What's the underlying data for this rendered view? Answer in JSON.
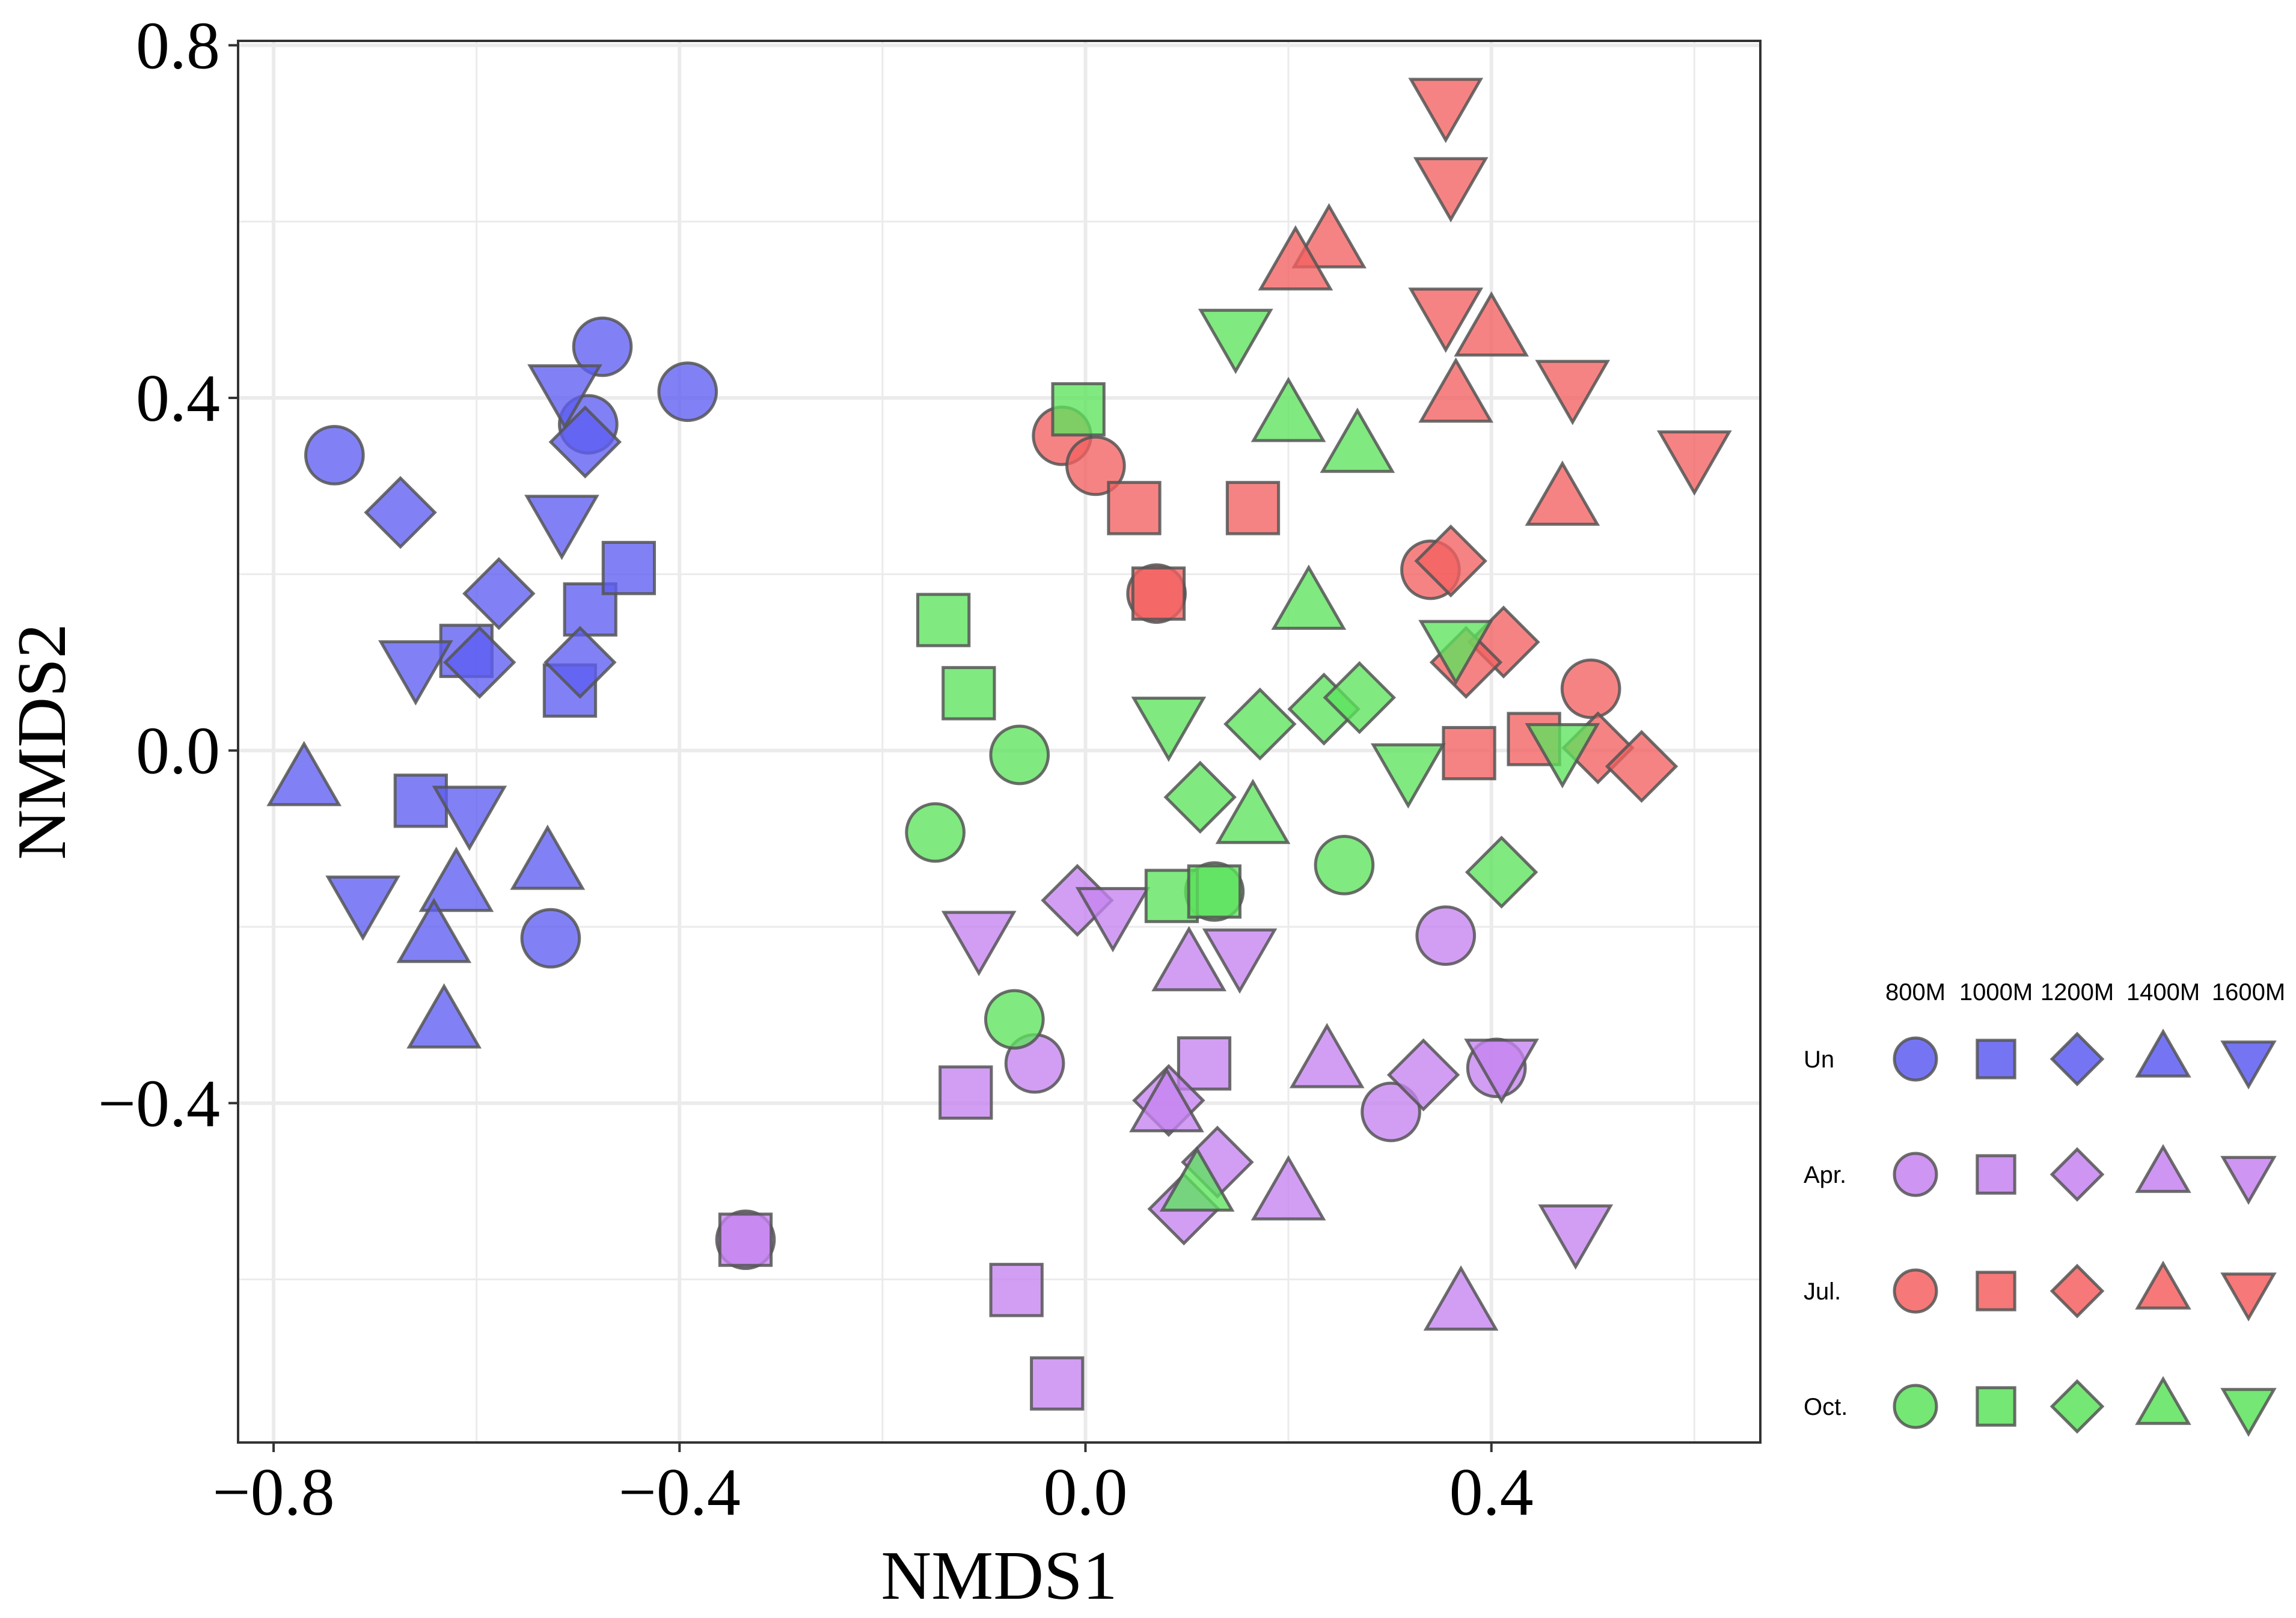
{
  "chart_data": {
    "type": "scatter",
    "title": "",
    "xlabel": "NMDS1",
    "ylabel": "NMDS2",
    "xlim": [
      -0.835,
      0.665
    ],
    "ylim": [
      -0.785,
      0.805
    ],
    "xticks": [
      -0.8,
      -0.4,
      0.0,
      0.4
    ],
    "xtick_labels": [
      "−0.8",
      "−0.4",
      "0.0",
      "0.4"
    ],
    "yticks": [
      -0.4,
      0.0,
      0.4,
      0.8
    ],
    "ytick_labels": [
      "−0.4",
      "0.0",
      "0.4",
      "0.8"
    ],
    "grid": true,
    "legend_placement": "right",
    "colors": {
      "Un": "#5d5df2",
      "Apr.": "#c583f0",
      "Jul.": "#f46060",
      "Oct.": "#5ce35c",
      "outline": "#555555",
      "grid": "#ebebeb"
    },
    "altitude_labels": [
      "800M",
      "1000M",
      "1200M",
      "1400M",
      "1600M"
    ],
    "month_labels": [
      "Un",
      "Apr.",
      "Jul.",
      "Oct."
    ],
    "series": [
      {
        "name": "Un",
        "points": [
          {
            "alt": "800M",
            "x": -0.74,
            "y": 0.335
          },
          {
            "alt": "800M",
            "x": -0.476,
            "y": 0.458
          },
          {
            "alt": "800M",
            "x": -0.49,
            "y": 0.37
          },
          {
            "alt": "800M",
            "x": -0.392,
            "y": 0.407
          },
          {
            "alt": "800M",
            "x": -0.527,
            "y": -0.213
          },
          {
            "alt": "1000M",
            "x": -0.61,
            "y": 0.113
          },
          {
            "alt": "1000M",
            "x": -0.488,
            "y": 0.16
          },
          {
            "alt": "1000M",
            "x": -0.45,
            "y": 0.207
          },
          {
            "alt": "1000M",
            "x": -0.508,
            "y": 0.068
          },
          {
            "alt": "1000M",
            "x": -0.655,
            "y": -0.057
          },
          {
            "alt": "1200M",
            "x": -0.675,
            "y": 0.27
          },
          {
            "alt": "1200M",
            "x": -0.578,
            "y": 0.178
          },
          {
            "alt": "1200M",
            "x": -0.597,
            "y": 0.1
          },
          {
            "alt": "1200M",
            "x": -0.498,
            "y": 0.1
          },
          {
            "alt": "1200M",
            "x": -0.493,
            "y": 0.35
          },
          {
            "alt": "1400M",
            "x": -0.77,
            "y": -0.035
          },
          {
            "alt": "1400M",
            "x": -0.53,
            "y": -0.13
          },
          {
            "alt": "1400M",
            "x": -0.62,
            "y": -0.155
          },
          {
            "alt": "1400M",
            "x": -0.642,
            "y": -0.213
          },
          {
            "alt": "1400M",
            "x": -0.632,
            "y": -0.31
          },
          {
            "alt": "1600M",
            "x": -0.513,
            "y": 0.41
          },
          {
            "alt": "1600M",
            "x": -0.516,
            "y": 0.262
          },
          {
            "alt": "1600M",
            "x": -0.66,
            "y": 0.097
          },
          {
            "alt": "1600M",
            "x": -0.712,
            "y": -0.17
          },
          {
            "alt": "1600M",
            "x": -0.607,
            "y": -0.068
          }
        ]
      },
      {
        "name": "Apr.",
        "points": [
          {
            "alt": "800M",
            "x": -0.05,
            "y": -0.355
          },
          {
            "alt": "800M",
            "x": 0.355,
            "y": -0.21
          },
          {
            "alt": "800M",
            "x": 0.301,
            "y": -0.41
          },
          {
            "alt": "800M",
            "x": 0.405,
            "y": -0.36
          },
          {
            "alt": "800M",
            "x": -0.335,
            "y": -0.555
          },
          {
            "alt": "1000M",
            "x": -0.118,
            "y": -0.388
          },
          {
            "alt": "1000M",
            "x": -0.068,
            "y": -0.612
          },
          {
            "alt": "1000M",
            "x": -0.028,
            "y": -0.718
          },
          {
            "alt": "1000M",
            "x": 0.117,
            "y": -0.355
          },
          {
            "alt": "1000M",
            "x": -0.335,
            "y": -0.555
          },
          {
            "alt": "1200M",
            "x": -0.008,
            "y": -0.17
          },
          {
            "alt": "1200M",
            "x": 0.082,
            "y": -0.397
          },
          {
            "alt": "1200M",
            "x": 0.13,
            "y": -0.467
          },
          {
            "alt": "1200M",
            "x": 0.097,
            "y": -0.52
          },
          {
            "alt": "1200M",
            "x": 0.333,
            "y": -0.368
          },
          {
            "alt": "1400M",
            "x": 0.102,
            "y": -0.245
          },
          {
            "alt": "1400M",
            "x": 0.238,
            "y": -0.355
          },
          {
            "alt": "1400M",
            "x": 0.08,
            "y": -0.405
          },
          {
            "alt": "1400M",
            "x": 0.2,
            "y": -0.505
          },
          {
            "alt": "1400M",
            "x": 0.37,
            "y": -0.63
          },
          {
            "alt": "1600M",
            "x": -0.105,
            "y": -0.21
          },
          {
            "alt": "1600M",
            "x": 0.027,
            "y": -0.183
          },
          {
            "alt": "1600M",
            "x": 0.152,
            "y": -0.23
          },
          {
            "alt": "1600M",
            "x": 0.41,
            "y": -0.355
          },
          {
            "alt": "1600M",
            "x": 0.483,
            "y": -0.543
          }
        ]
      },
      {
        "name": "Jul.",
        "points": [
          {
            "alt": "800M",
            "x": -0.023,
            "y": 0.357
          },
          {
            "alt": "800M",
            "x": 0.01,
            "y": 0.323
          },
          {
            "alt": "800M",
            "x": 0.07,
            "y": 0.178
          },
          {
            "alt": "800M",
            "x": 0.34,
            "y": 0.205
          },
          {
            "alt": "800M",
            "x": 0.498,
            "y": 0.07
          },
          {
            "alt": "1000M",
            "x": 0.048,
            "y": 0.275
          },
          {
            "alt": "1000M",
            "x": 0.165,
            "y": 0.275
          },
          {
            "alt": "1000M",
            "x": 0.072,
            "y": 0.178
          },
          {
            "alt": "1000M",
            "x": 0.378,
            "y": -0.003
          },
          {
            "alt": "1000M",
            "x": 0.442,
            "y": 0.013
          },
          {
            "alt": "1200M",
            "x": 0.36,
            "y": 0.215
          },
          {
            "alt": "1200M",
            "x": 0.412,
            "y": 0.123
          },
          {
            "alt": "1200M",
            "x": 0.375,
            "y": 0.1
          },
          {
            "alt": "1200M",
            "x": 0.505,
            "y": 0.003
          },
          {
            "alt": "1200M",
            "x": 0.548,
            "y": -0.018
          },
          {
            "alt": "1400M",
            "x": 0.24,
            "y": 0.575
          },
          {
            "alt": "1400M",
            "x": 0.207,
            "y": 0.55
          },
          {
            "alt": "1400M",
            "x": 0.4,
            "y": 0.475
          },
          {
            "alt": "1400M",
            "x": 0.365,
            "y": 0.4
          },
          {
            "alt": "1400M",
            "x": 0.47,
            "y": 0.283
          },
          {
            "alt": "1600M",
            "x": 0.355,
            "y": 0.735
          },
          {
            "alt": "1600M",
            "x": 0.36,
            "y": 0.645
          },
          {
            "alt": "1600M",
            "x": 0.355,
            "y": 0.497
          },
          {
            "alt": "1600M",
            "x": 0.48,
            "y": 0.415
          },
          {
            "alt": "1600M",
            "x": 0.6,
            "y": 0.335
          }
        ]
      },
      {
        "name": "Oct.",
        "points": [
          {
            "alt": "800M",
            "x": -0.148,
            "y": -0.093
          },
          {
            "alt": "800M",
            "x": -0.065,
            "y": -0.005
          },
          {
            "alt": "800M",
            "x": -0.07,
            "y": -0.305
          },
          {
            "alt": "800M",
            "x": 0.255,
            "y": -0.13
          },
          {
            "alt": "800M",
            "x": 0.127,
            "y": -0.16
          },
          {
            "alt": "1000M",
            "x": -0.14,
            "y": 0.148
          },
          {
            "alt": "1000M",
            "x": -0.115,
            "y": 0.065
          },
          {
            "alt": "1000M",
            "x": -0.007,
            "y": 0.387
          },
          {
            "alt": "1000M",
            "x": 0.085,
            "y": -0.165
          },
          {
            "alt": "1000M",
            "x": 0.127,
            "y": -0.16
          },
          {
            "alt": "1200M",
            "x": 0.113,
            "y": -0.053
          },
          {
            "alt": "1200M",
            "x": 0.172,
            "y": 0.03
          },
          {
            "alt": "1200M",
            "x": 0.235,
            "y": 0.047
          },
          {
            "alt": "1200M",
            "x": 0.27,
            "y": 0.06
          },
          {
            "alt": "1200M",
            "x": 0.41,
            "y": -0.138
          },
          {
            "alt": "1400M",
            "x": 0.2,
            "y": 0.378
          },
          {
            "alt": "1400M",
            "x": 0.268,
            "y": 0.343
          },
          {
            "alt": "1400M",
            "x": 0.22,
            "y": 0.165
          },
          {
            "alt": "1400M",
            "x": 0.165,
            "y": -0.078
          },
          {
            "alt": "1400M",
            "x": 0.11,
            "y": -0.495
          },
          {
            "alt": "1600M",
            "x": 0.148,
            "y": 0.473
          },
          {
            "alt": "1600M",
            "x": 0.082,
            "y": 0.033
          },
          {
            "alt": "1600M",
            "x": 0.318,
            "y": -0.02
          },
          {
            "alt": "1600M",
            "x": 0.365,
            "y": 0.12
          },
          {
            "alt": "1600M",
            "x": 0.47,
            "y": 0.003
          }
        ]
      }
    ]
  }
}
